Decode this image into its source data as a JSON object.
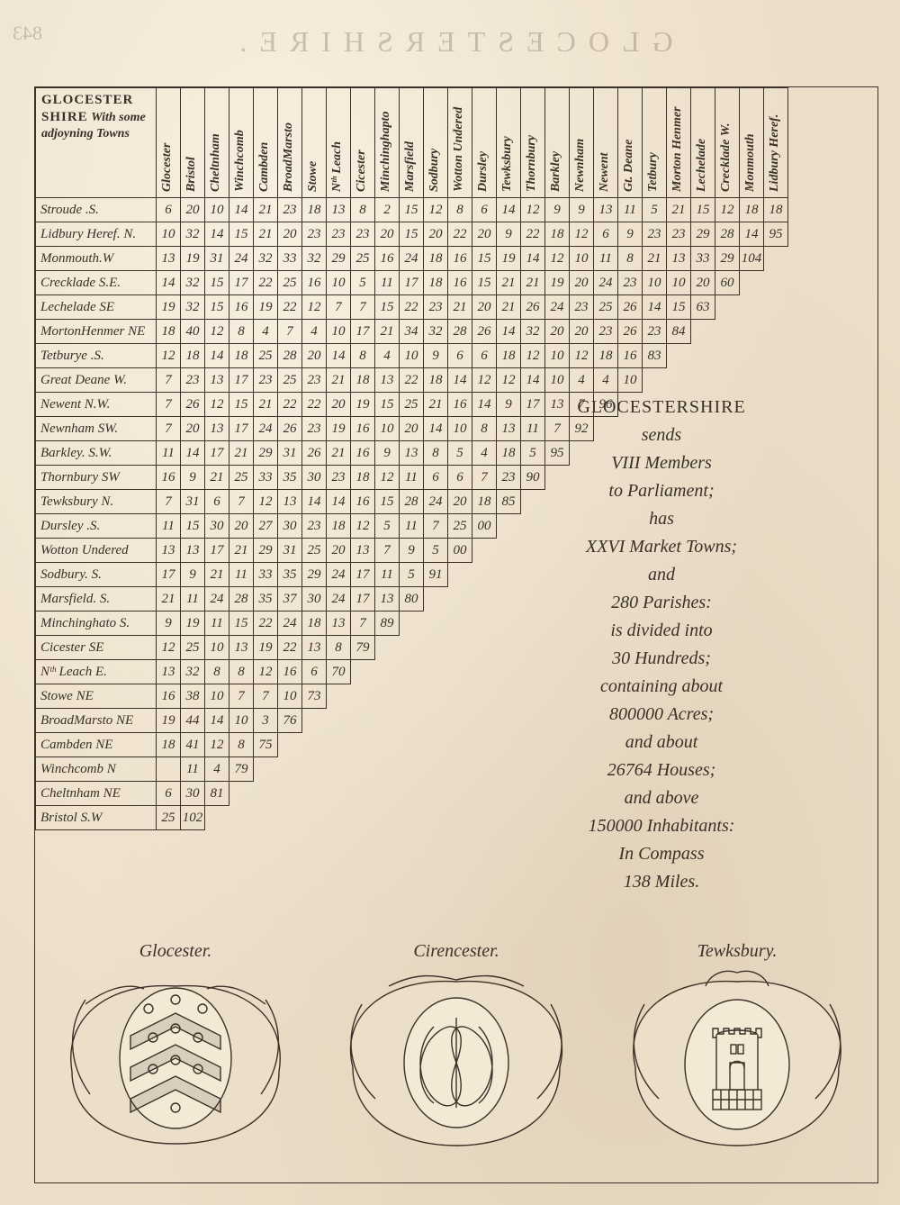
{
  "reverse_title": "GLOCESTERSHIRE.",
  "page_number": "843",
  "corner": {
    "line1": "GLOCESTER",
    "line2": "SHIRE",
    "line3": "With some adjoyning Towns"
  },
  "columns": [
    "Glocester",
    "Bristol",
    "Cheltnham",
    "Winchcomb",
    "Cambden",
    "BroadMarsto",
    "Stowe",
    "Nᵗʰ Leach",
    "Cicester",
    "Minchinghapto",
    "Marsfield",
    "Sodbury",
    "Wotton Undered",
    "Dursley",
    "Tewksbury",
    "Thornbury",
    "Barkley",
    "Newnham",
    "Newent",
    "Gt. Deane",
    "Tetbury",
    "Morton Henmer",
    "Lechelade",
    "Crecklade W.",
    "Monmouth",
    "Lidbury Heref."
  ],
  "rows": [
    {
      "name": "Stroude .S.",
      "v": [
        "6",
        "20",
        "10",
        "14",
        "21",
        "23",
        "18",
        "13",
        "8",
        "2",
        "15",
        "12",
        "8",
        "6",
        "14",
        "12",
        "9",
        "9",
        "13",
        "11",
        "5",
        "21",
        "15",
        "12",
        "18",
        "18"
      ]
    },
    {
      "name": "Lidbury Heref. N.",
      "v": [
        "10",
        "32",
        "14",
        "15",
        "21",
        "20",
        "23",
        "23",
        "23",
        "20",
        "15",
        "20",
        "22",
        "20",
        "9",
        "22",
        "18",
        "12",
        "6",
        "9",
        "23",
        "23",
        "29",
        "28",
        "14",
        "95"
      ]
    },
    {
      "name": "Monmouth.W",
      "v": [
        "13",
        "19",
        "31",
        "24",
        "32",
        "33",
        "32",
        "29",
        "25",
        "16",
        "24",
        "18",
        "16",
        "15",
        "19",
        "14",
        "12",
        "10",
        "11",
        "8",
        "21",
        "13",
        "33",
        "29",
        "104"
      ]
    },
    {
      "name": "Crecklade S.E.",
      "v": [
        "14",
        "32",
        "15",
        "17",
        "22",
        "25",
        "16",
        "10",
        "5",
        "11",
        "17",
        "18",
        "16",
        "15",
        "21",
        "21",
        "19",
        "20",
        "24",
        "23",
        "10",
        "10",
        "20",
        "60"
      ]
    },
    {
      "name": "Lechelade SE",
      "v": [
        "19",
        "32",
        "15",
        "16",
        "19",
        "22",
        "12",
        "7",
        "7",
        "15",
        "22",
        "23",
        "21",
        "20",
        "21",
        "26",
        "24",
        "23",
        "25",
        "26",
        "14",
        "15",
        "63"
      ]
    },
    {
      "name": "MortonHenmer NE",
      "v": [
        "18",
        "40",
        "12",
        "8",
        "4",
        "7",
        "4",
        "10",
        "17",
        "21",
        "34",
        "32",
        "28",
        "26",
        "14",
        "32",
        "20",
        "20",
        "23",
        "26",
        "23",
        "84"
      ]
    },
    {
      "name": "Tetburye .S.",
      "v": [
        "12",
        "18",
        "14",
        "18",
        "25",
        "28",
        "20",
        "14",
        "8",
        "4",
        "10",
        "9",
        "6",
        "6",
        "18",
        "12",
        "10",
        "12",
        "18",
        "16",
        "83"
      ]
    },
    {
      "name": "Great Deane W.",
      "v": [
        "7",
        "23",
        "13",
        "17",
        "23",
        "25",
        "23",
        "21",
        "18",
        "13",
        "22",
        "18",
        "14",
        "12",
        "12",
        "14",
        "10",
        "4",
        "4",
        "10"
      ]
    },
    {
      "name": "Newent N.W.",
      "v": [
        "7",
        "26",
        "12",
        "15",
        "21",
        "22",
        "22",
        "20",
        "19",
        "15",
        "25",
        "21",
        "16",
        "14",
        "9",
        "17",
        "13",
        "7",
        "96"
      ]
    },
    {
      "name": "Newnham SW.",
      "v": [
        "7",
        "20",
        "13",
        "17",
        "24",
        "26",
        "23",
        "19",
        "16",
        "10",
        "20",
        "14",
        "10",
        "8",
        "13",
        "11",
        "7",
        "92"
      ]
    },
    {
      "name": "Barkley. S.W.",
      "v": [
        "11",
        "14",
        "17",
        "21",
        "29",
        "31",
        "26",
        "21",
        "16",
        "9",
        "13",
        "8",
        "5",
        "4",
        "18",
        "5",
        "95"
      ]
    },
    {
      "name": "Thornbury SW",
      "v": [
        "16",
        "9",
        "21",
        "25",
        "33",
        "35",
        "30",
        "23",
        "18",
        "12",
        "11",
        "6",
        "6",
        "7",
        "23",
        "90"
      ]
    },
    {
      "name": "Tewksbury N.",
      "v": [
        "7",
        "31",
        "6",
        "7",
        "12",
        "13",
        "14",
        "14",
        "16",
        "15",
        "28",
        "24",
        "20",
        "18",
        "85"
      ]
    },
    {
      "name": "Dursley .S.",
      "v": [
        "11",
        "15",
        "30",
        "20",
        "27",
        "30",
        "23",
        "18",
        "12",
        "5",
        "11",
        "7",
        "25",
        "00"
      ]
    },
    {
      "name": "Wotton Undered",
      "v": [
        "13",
        "13",
        "17",
        "21",
        "29",
        "31",
        "25",
        "20",
        "13",
        "7",
        "9",
        "5",
        "00"
      ]
    },
    {
      "name": "Sodbury. S.",
      "v": [
        "17",
        "9",
        "21",
        "11",
        "33",
        "35",
        "29",
        "24",
        "17",
        "11",
        "5",
        "91"
      ]
    },
    {
      "name": "Marsfield. S.",
      "v": [
        "21",
        "11",
        "24",
        "28",
        "35",
        "37",
        "30",
        "24",
        "17",
        "13",
        "80"
      ]
    },
    {
      "name": "Minchinghato S.",
      "v": [
        "9",
        "19",
        "11",
        "15",
        "22",
        "24",
        "18",
        "13",
        "7",
        "89"
      ]
    },
    {
      "name": "Cicester SE",
      "v": [
        "12",
        "25",
        "10",
        "13",
        "19",
        "22",
        "13",
        "8",
        "79"
      ]
    },
    {
      "name": "Nᵗʰ Leach E.",
      "v": [
        "13",
        "32",
        "8",
        "8",
        "12",
        "16",
        "6",
        "70"
      ]
    },
    {
      "name": "Stowe NE",
      "v": [
        "16",
        "38",
        "10",
        "7",
        "7",
        "10",
        "73"
      ]
    },
    {
      "name": "BroadMarsto NE",
      "v": [
        "19",
        "44",
        "14",
        "10",
        "3",
        "76"
      ]
    },
    {
      "name": "Cambden NE",
      "v": [
        "18",
        "41",
        "12",
        "8",
        "75"
      ]
    },
    {
      "name": "Winchcomb N",
      "v": [
        "",
        "11",
        "4",
        "79"
      ]
    },
    {
      "name": "Cheltnham NE",
      "v": [
        "6",
        "30",
        "81"
      ]
    },
    {
      "name": "Bristol S.W",
      "v": [
        "25",
        "102"
      ]
    }
  ],
  "description": {
    "l1": "GLOCESTERSHIRE",
    "l2": "sends",
    "l3": "VIII Members",
    "l4": "to Parliament;",
    "l5": "has",
    "l6": "XXVI Market Towns;",
    "l7": "and",
    "l8": "280 Parishes:",
    "l9": "is divided into",
    "l10": "30 Hundreds;",
    "l11": "containing about",
    "l12": "800000 Acres;",
    "l13": "and about",
    "l14": "26764 Houses;",
    "l15": "and above",
    "l16": "150000 Inhabitants:",
    "l17": "In Compass",
    "l18": "138 Miles."
  },
  "crests": [
    {
      "label": "Glocester."
    },
    {
      "label": "Cirencester."
    },
    {
      "label": "Tewksbury."
    }
  ],
  "colors": {
    "ink": "#3a3028",
    "paper": "#ecdfc9"
  }
}
